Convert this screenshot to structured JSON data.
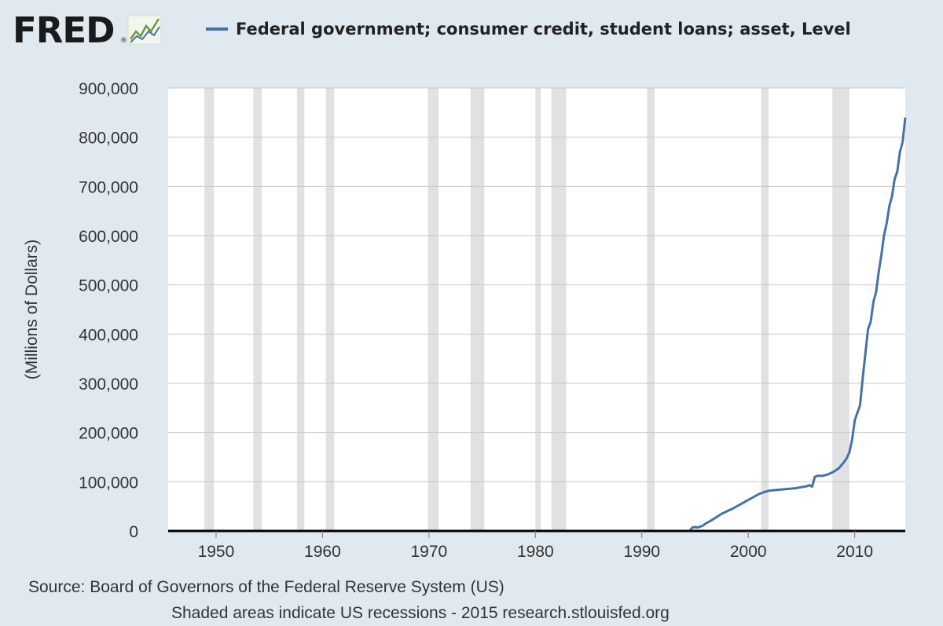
{
  "logo": {
    "text": "FRED",
    "registered": "®",
    "icon": "chart-trend-icon"
  },
  "legend": {
    "label": "Federal government; consumer credit, student loans; asset, Level",
    "color": "#4572a7"
  },
  "footer": {
    "source": "Source: Board of Governors of the Federal Reserve System (US)",
    "note": "Shaded areas indicate US recessions - 2015 research.stlouisfed.org"
  },
  "colors": {
    "background": "#e1e9f0",
    "plot_background": "#ffffff",
    "recession_shade": "#e1e1e1",
    "gridline": "#c8c8c8",
    "series": "#4572a7",
    "zero_line": "#000000"
  },
  "chart_data": {
    "type": "line",
    "title": "",
    "xlabel": "",
    "ylabel": "(Millions of Dollars)",
    "xlim": [
      1945.5,
      2014.75
    ],
    "ylim": [
      0,
      900000
    ],
    "grid": true,
    "legend_position": "top",
    "x_ticks": [
      1950,
      1960,
      1970,
      1980,
      1990,
      2000,
      2010
    ],
    "y_ticks": [
      0,
      100000,
      200000,
      300000,
      400000,
      500000,
      600000,
      700000,
      800000,
      900000
    ],
    "y_tick_labels": [
      "0",
      "100,000",
      "200,000",
      "300,000",
      "400,000",
      "500,000",
      "600,000",
      "700,000",
      "800,000",
      "900,000"
    ],
    "recessions": [
      [
        1948.9,
        1949.8
      ],
      [
        1953.5,
        1954.3
      ],
      [
        1957.6,
        1958.3
      ],
      [
        1960.3,
        1961.1
      ],
      [
        1969.9,
        1970.9
      ],
      [
        1973.9,
        1975.2
      ],
      [
        1980.0,
        1980.5
      ],
      [
        1981.5,
        1982.9
      ],
      [
        1990.5,
        1991.2
      ],
      [
        2001.2,
        2001.9
      ],
      [
        2007.9,
        2009.5
      ]
    ],
    "series": [
      {
        "name": "Federal government; consumer credit, student loans; asset, Level",
        "x": [
          1945.75,
          1994.5,
          1994.75,
          1995,
          1995.25,
          1995.5,
          1995.75,
          1996,
          1996.5,
          1997,
          1997.5,
          1998,
          1998.5,
          1999,
          1999.5,
          2000,
          2000.5,
          2001,
          2001.5,
          2002,
          2002.5,
          2003,
          2003.5,
          2004,
          2004.5,
          2005,
          2005.5,
          2005.75,
          2006,
          2006.25,
          2006.5,
          2007,
          2007.5,
          2008,
          2008.5,
          2009,
          2009.25,
          2009.5,
          2009.75,
          2010,
          2010.25,
          2010.5,
          2010.75,
          2011,
          2011.25,
          2011.5,
          2011.75,
          2012,
          2012.25,
          2012.5,
          2012.75,
          2013,
          2013.25,
          2013.5,
          2013.75,
          2014,
          2014.25,
          2014.5,
          2014.75
        ],
        "y": [
          0,
          0,
          7000,
          8000,
          7000,
          9000,
          11000,
          15000,
          21000,
          28000,
          35000,
          40000,
          45000,
          51000,
          57000,
          63000,
          69000,
          75000,
          79000,
          82000,
          83000,
          84000,
          85000,
          86000,
          87000,
          89000,
          91000,
          93000,
          90000,
          110000,
          112000,
          112000,
          115000,
          120000,
          127000,
          140000,
          148000,
          160000,
          185000,
          225000,
          240000,
          255000,
          310000,
          360000,
          410000,
          425000,
          465000,
          485000,
          525000,
          560000,
          600000,
          625000,
          660000,
          680000,
          715000,
          730000,
          770000,
          790000,
          840000
        ]
      }
    ]
  }
}
